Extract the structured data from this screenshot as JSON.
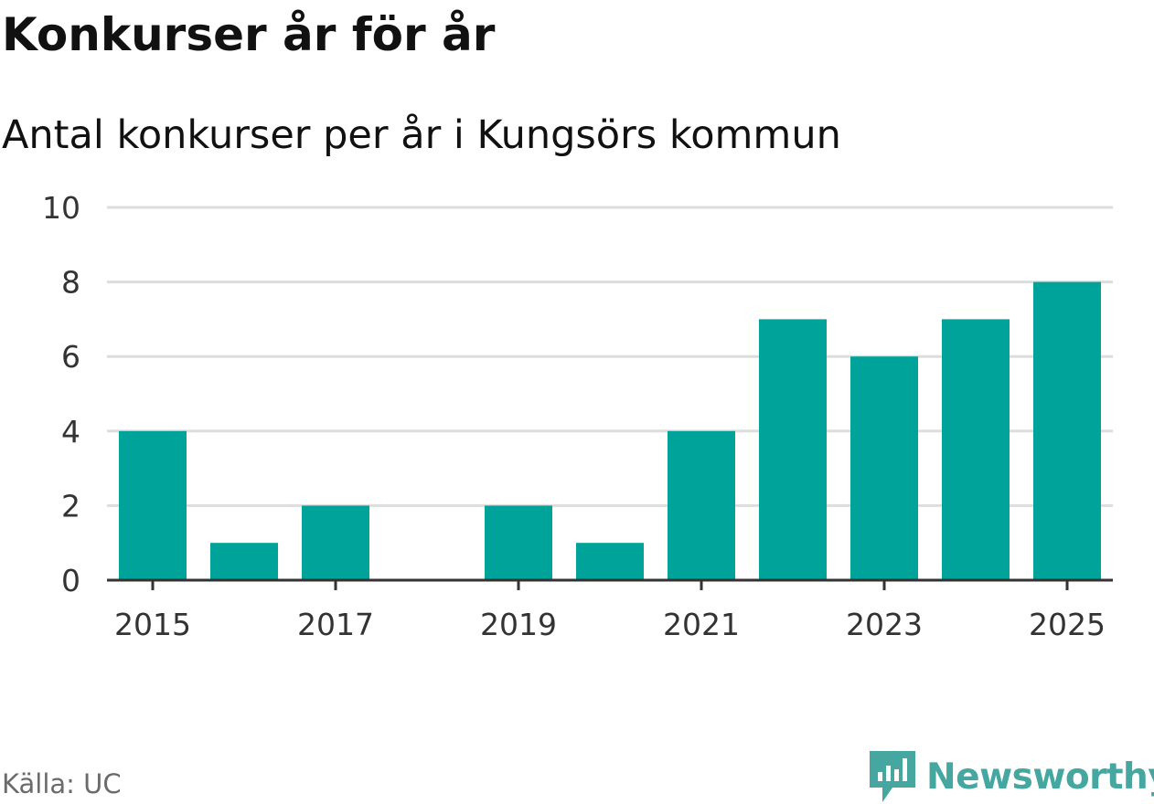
{
  "header": {
    "title": "Konkurser år för år",
    "subtitle": "Antal konkurser per år i Kungsörs kommun"
  },
  "footer": {
    "source": "Källa: UC",
    "brand": "Newsworthy"
  },
  "colors": {
    "bar": "#00a39a",
    "grid": "#dddddd",
    "axis": "#333333",
    "brand": "#45a7a0"
  },
  "icons": {
    "brand_logo": "newsworthy-logo-icon"
  },
  "chart_data": {
    "type": "bar",
    "title": "Konkurser år för år",
    "subtitle": "Antal konkurser per år i Kungsörs kommun",
    "xlabel": "",
    "ylabel": "",
    "categories": [
      "2015",
      "2016",
      "2017",
      "2018",
      "2019",
      "2020",
      "2021",
      "2022",
      "2023",
      "2024",
      "2025"
    ],
    "values": [
      4,
      1,
      2,
      0,
      2,
      1,
      4,
      7,
      6,
      7,
      8
    ],
    "x_tick_labels": [
      "2015",
      "2017",
      "2019",
      "2021",
      "2023",
      "2025"
    ],
    "y_ticks": [
      0,
      2,
      4,
      6,
      8,
      10
    ],
    "ylim": [
      0,
      10
    ],
    "grid": true,
    "legend": "none"
  }
}
